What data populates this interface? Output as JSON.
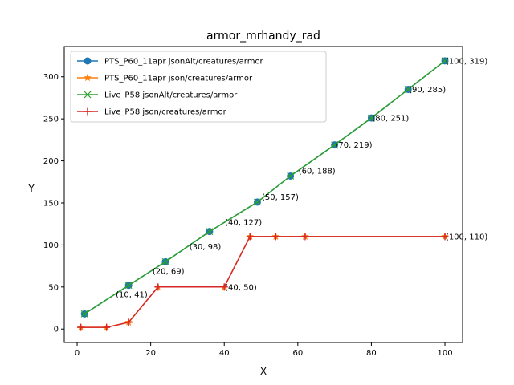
{
  "chart_data": {
    "type": "line",
    "title": "armor_mrhandy_rad",
    "xlabel": "X",
    "ylabel": "Y",
    "xlim": [
      -3.5,
      104.8
    ],
    "ylim": [
      -16,
      336
    ],
    "xticks": [
      0,
      20,
      40,
      60,
      80,
      100
    ],
    "yticks": [
      0,
      50,
      100,
      150,
      200,
      250,
      300
    ],
    "grid": false,
    "legend_position": "top-left",
    "series": [
      {
        "name": "PTS_P60_11apr jsonAlt/creatures/armor",
        "color": "#1f77b4",
        "marker": "circle",
        "x": [
          2,
          14,
          24,
          36,
          49,
          58,
          70,
          80,
          90,
          100
        ],
        "y": [
          18,
          52,
          80,
          116,
          151,
          182,
          219,
          251,
          285,
          319
        ]
      },
      {
        "name": "PTS_P60_11apr json/creatures/armor",
        "color": "#ff7f0e",
        "marker": "star",
        "x": [
          1,
          8,
          14,
          22,
          40,
          47,
          54,
          62,
          100
        ],
        "y": [
          2,
          2,
          8,
          50,
          50,
          110,
          110,
          110,
          110
        ]
      },
      {
        "name": "Live_P58 jsonAlt/creatures/armor",
        "color": "#2ca02c",
        "marker": "x",
        "x": [
          2,
          14,
          24,
          36,
          49,
          58,
          70,
          80,
          90,
          100
        ],
        "y": [
          18,
          52,
          80,
          116,
          151,
          182,
          219,
          251,
          285,
          319
        ]
      },
      {
        "name": "Live_P58 json/creatures/armor",
        "color": "#d62728",
        "marker": "plus",
        "x": [
          1,
          8,
          14,
          22,
          40,
          47,
          54,
          62,
          100
        ],
        "y": [
          2,
          2,
          8,
          50,
          50,
          110,
          110,
          110,
          110
        ]
      }
    ],
    "annotations": [
      {
        "text": "(10, 41)",
        "x": 10.5,
        "y": 41
      },
      {
        "text": "(20, 69)",
        "x": 20.5,
        "y": 69
      },
      {
        "text": "(30, 98)",
        "x": 30.5,
        "y": 98
      },
      {
        "text": "(40, 127)",
        "x": 40.2,
        "y": 127
      },
      {
        "text": "(40, 50)",
        "x": 40.2,
        "y": 50
      },
      {
        "text": "(50, 157)",
        "x": 50.2,
        "y": 157
      },
      {
        "text": "(60, 188)",
        "x": 60.2,
        "y": 188
      },
      {
        "text": "(70, 219)",
        "x": 70.2,
        "y": 219
      },
      {
        "text": "(80, 251)",
        "x": 80.2,
        "y": 251
      },
      {
        "text": "(90, 285)",
        "x": 90.2,
        "y": 285
      },
      {
        "text": "(100, 319)",
        "x": 100.2,
        "y": 319
      },
      {
        "text": "(100, 110)",
        "x": 100.2,
        "y": 110
      }
    ]
  }
}
